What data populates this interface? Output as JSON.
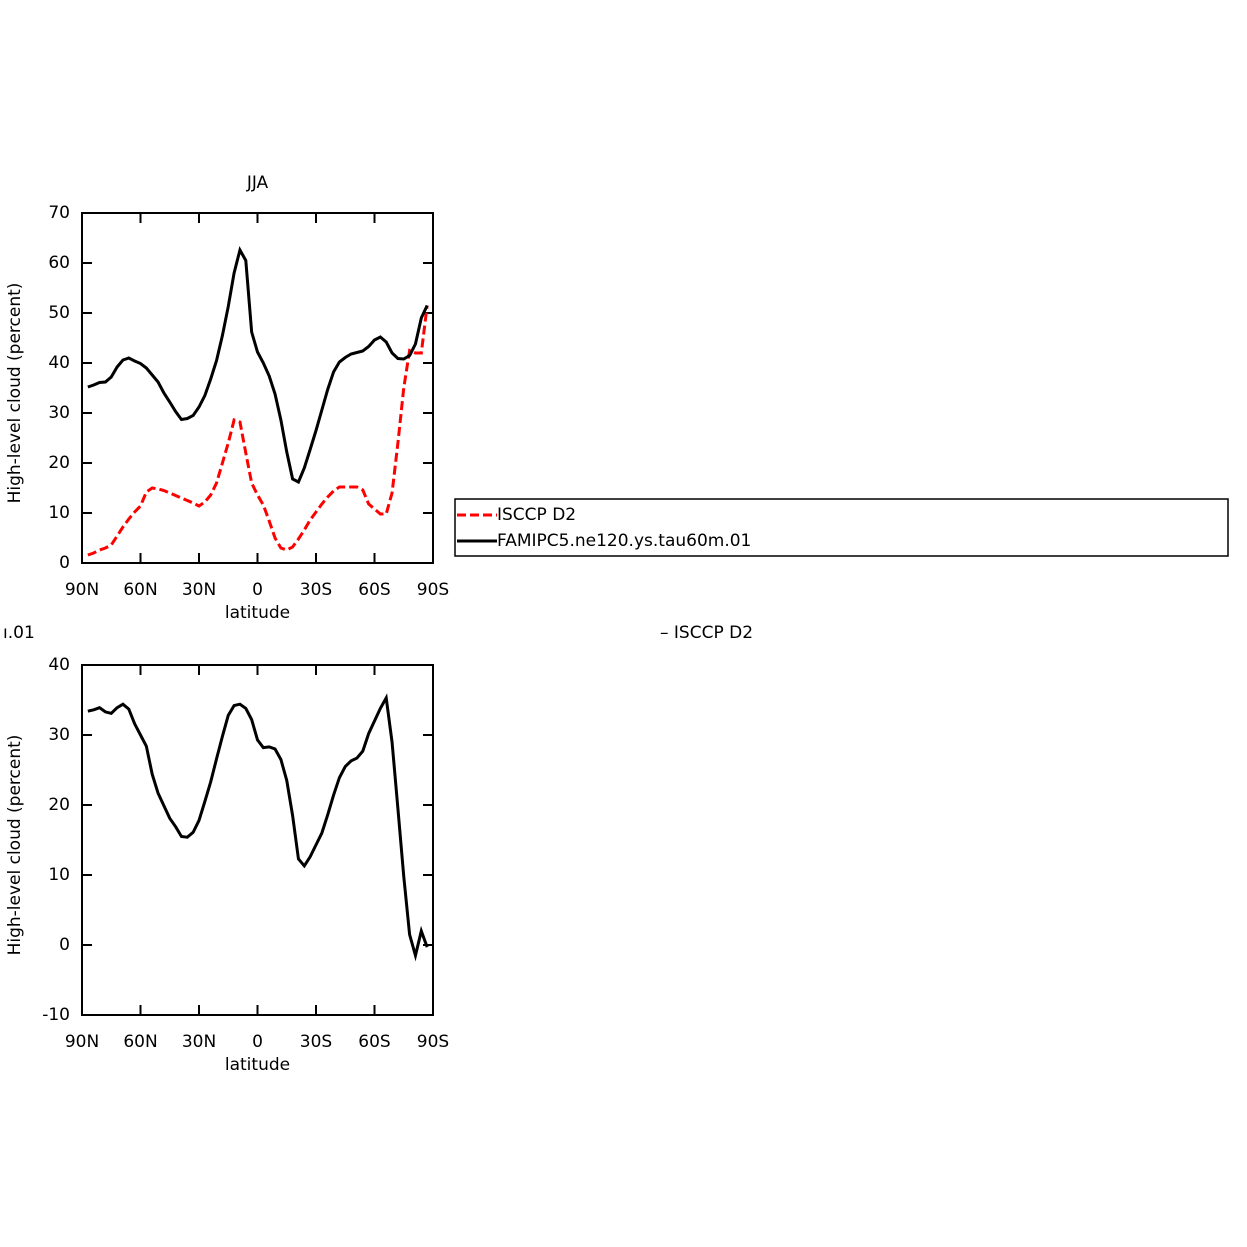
{
  "chart_data": [
    {
      "type": "line",
      "title": "JJA",
      "ylabel": "High-level cloud (percent)",
      "xlabel": "latitude",
      "xlim": [
        90,
        -90
      ],
      "ylim": [
        0,
        70
      ],
      "xticks": [
        {
          "value": 90,
          "label": "90N"
        },
        {
          "value": 60,
          "label": "60N"
        },
        {
          "value": 30,
          "label": "30N"
        },
        0,
        {
          "value": -30,
          "label": "30S"
        },
        {
          "value": -60,
          "label": "60S"
        },
        {
          "value": -90,
          "label": "90S"
        }
      ],
      "yticks": [
        0,
        10,
        20,
        30,
        40,
        50,
        60,
        70
      ],
      "legend": true,
      "x": [
        87,
        84,
        81,
        78,
        75,
        72,
        69,
        66,
        63,
        60,
        57,
        54,
        51,
        48,
        45,
        42,
        39,
        36,
        33,
        30,
        27,
        24,
        21,
        18,
        15,
        12,
        9,
        6,
        3,
        0,
        -3,
        -6,
        -9,
        -12,
        -15,
        -18,
        -21,
        -24,
        -27,
        -30,
        -33,
        -36,
        -39,
        -42,
        -45,
        -48,
        -51,
        -54,
        -57,
        -60,
        -63,
        -66,
        -69,
        -72,
        -75,
        -78,
        -81,
        -84,
        -87
      ],
      "series": [
        {
          "name": "ISCCP D2",
          "color": "#ff0000",
          "linestyle": "dashed",
          "values": [
            1.6,
            2,
            2.6,
            3,
            3.6,
            5.4,
            7.2,
            8.8,
            10.2,
            11.4,
            14.2,
            15,
            14.8,
            14.5,
            14,
            13.5,
            13,
            12.5,
            12,
            11.4,
            12.2,
            13.6,
            16,
            20,
            24,
            28.6,
            28.2,
            22,
            16,
            13.6,
            11.6,
            8.4,
            5,
            3,
            2.6,
            3.2,
            4.8,
            6.6,
            8.6,
            10.2,
            11.8,
            13.2,
            14.4,
            15.2,
            15.2,
            15.2,
            15.2,
            14.6,
            11.8,
            10.8,
            9.8,
            9.8,
            14,
            24,
            35,
            42.5,
            42,
            42,
            51.5
          ]
        },
        {
          "name": "FAMIPC5.ne120.ys.tau60m.01",
          "color": "#000000",
          "linestyle": "solid",
          "values": [
            35.2,
            35.6,
            36.1,
            36.2,
            37.2,
            39.2,
            40.6,
            41,
            40.4,
            39.9,
            39,
            37.6,
            36.2,
            34,
            32.2,
            30.3,
            28.7,
            28.9,
            29.5,
            31.2,
            33.5,
            36.8,
            40.5,
            45.5,
            51.3,
            58,
            62.6,
            60.5,
            46.2,
            42.2,
            40,
            37.4,
            33.8,
            28.6,
            22.2,
            16.8,
            16.2,
            19,
            22.7,
            26.5,
            30.6,
            34.7,
            38.2,
            40.2,
            41.1,
            41.8,
            42.1,
            42.4,
            43.3,
            44.6,
            45.2,
            44.2,
            42,
            40.9,
            40.8,
            41.5,
            43.8,
            49,
            51.5
          ]
        }
      ]
    },
    {
      "type": "line",
      "title_parts": [
        "ı.01",
        "– ISCCP D2"
      ],
      "ylabel": "High-level cloud (percent)",
      "xlabel": "latitude",
      "xlim": [
        90,
        -90
      ],
      "ylim": [
        -10,
        40
      ],
      "xticks": [
        {
          "value": 90,
          "label": "90N"
        },
        {
          "value": 60,
          "label": "60N"
        },
        {
          "value": 30,
          "label": "30N"
        },
        0,
        {
          "value": -30,
          "label": "30S"
        },
        {
          "value": -60,
          "label": "60S"
        },
        {
          "value": -90,
          "label": "90S"
        }
      ],
      "yticks": [
        -10,
        0,
        10,
        20,
        30,
        40
      ],
      "legend": false,
      "x": [
        87,
        84,
        81,
        78,
        75,
        72,
        69,
        66,
        63,
        60,
        57,
        54,
        51,
        48,
        45,
        42,
        39,
        36,
        33,
        30,
        27,
        24,
        21,
        18,
        15,
        12,
        9,
        6,
        3,
        0,
        -3,
        -6,
        -9,
        -12,
        -15,
        -18,
        -21,
        -24,
        -27,
        -30,
        -33,
        -36,
        -39,
        -42,
        -45,
        -48,
        -51,
        -54,
        -57,
        -60,
        -63,
        -66,
        -69,
        -72,
        -75,
        -78,
        -81,
        -84,
        -87
      ],
      "series": [
        {
          "color": "#000000",
          "linestyle": "solid",
          "values": [
            33.4,
            33.6,
            33.9,
            33.3,
            33.1,
            33.9,
            34.4,
            33.7,
            31.6,
            30,
            28.4,
            24.4,
            21.7,
            19.9,
            18.1,
            16.9,
            15.5,
            15.4,
            16.1,
            17.8,
            20.5,
            23.3,
            26.6,
            29.8,
            32.8,
            34.2,
            34.4,
            33.8,
            32.2,
            29.3,
            28.2,
            28.3,
            28,
            26.5,
            23.5,
            18.5,
            12.3,
            11.3,
            12.6,
            14.3,
            16,
            18.6,
            21.4,
            23.9,
            25.5,
            26.3,
            26.7,
            27.7,
            30.2,
            32,
            33.8,
            35.3,
            29,
            19.5,
            9.8,
            1.5,
            -1.5,
            2,
            -0.3
          ]
        }
      ]
    }
  ]
}
